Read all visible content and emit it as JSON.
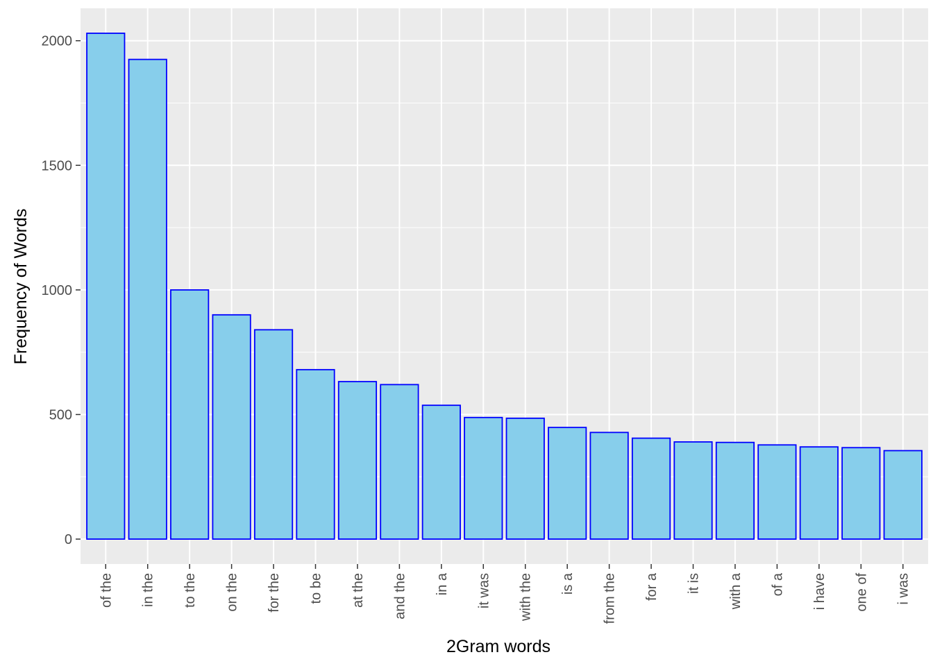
{
  "chart_data": {
    "type": "bar",
    "title": "",
    "xlabel": "2Gram words",
    "ylabel": "Frequency of Words",
    "categories": [
      "of the",
      "in the",
      "to the",
      "on the",
      "for the",
      "to be",
      "at the",
      "and the",
      "in a",
      "it was",
      "with the",
      "is a",
      "from the",
      "for a",
      "it is",
      "with a",
      "of a",
      "i have",
      "one of",
      "i was"
    ],
    "values": [
      2030,
      1925,
      1000,
      900,
      840,
      680,
      632,
      620,
      537,
      488,
      485,
      448,
      428,
      405,
      390,
      388,
      378,
      370,
      367,
      355
    ],
    "yticks": [
      0,
      500,
      1000,
      1500,
      2000
    ],
    "ylim": [
      -100,
      2130
    ],
    "grid": true,
    "legend": "none",
    "colors": {
      "bar_fill": "#87ceeb",
      "bar_stroke": "#0000ff",
      "panel_bg": "#ebebeb",
      "grid_major": "#ffffff",
      "tick_label": "#4d4d4d"
    }
  }
}
